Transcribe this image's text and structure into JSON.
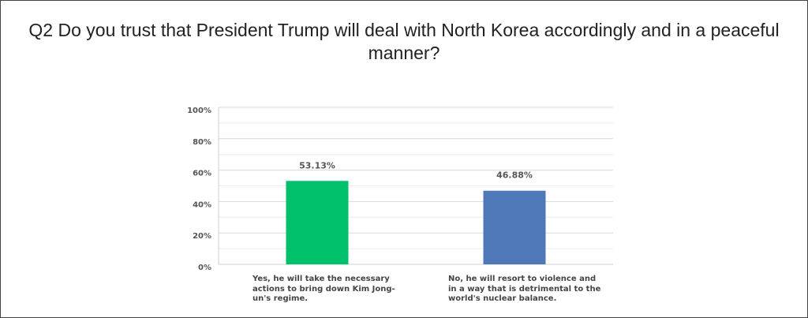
{
  "title": "Q2 Do you trust that President Trump will deal with North Korea accordingly and in a peaceful manner?",
  "chart_data": {
    "type": "bar",
    "categories": [
      "Yes, he will take the necessary actions to bring down Kim Jong-un's regime.",
      "No, he will resort to violence and in a way that is detrimental to the world's nuclear balance."
    ],
    "values": [
      53.13,
      46.88
    ],
    "data_labels": [
      "53.13%",
      "46.88%"
    ],
    "bar_colors": [
      "#00c06b",
      "#4f78b8"
    ],
    "ylim": [
      0,
      100
    ],
    "yticks": [
      0,
      20,
      40,
      60,
      80,
      100
    ],
    "ytick_labels": [
      "0%",
      "20%",
      "40%",
      "60%",
      "80%",
      "100%"
    ],
    "grid": true,
    "legend": "none"
  }
}
